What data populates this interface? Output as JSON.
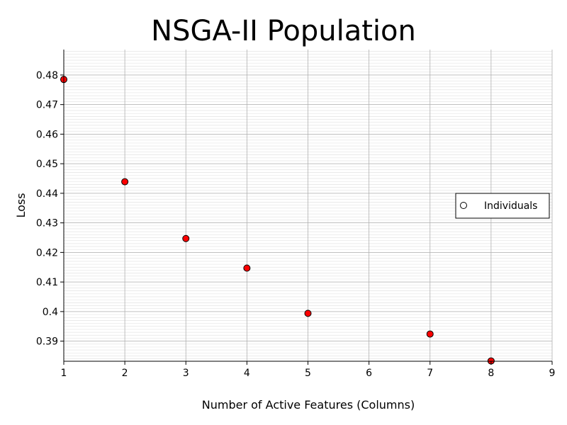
{
  "chart_data": {
    "type": "scatter",
    "title": "NSGA-II Population",
    "xlabel": "Number of Active Features (Columns)",
    "ylabel": "Loss",
    "xlim": [
      1,
      9
    ],
    "ylim": [
      0.3832,
      0.4886
    ],
    "xticks": [
      "1",
      "2",
      "3",
      "4",
      "5",
      "6",
      "7",
      "8",
      "9"
    ],
    "yticks": [
      "0.39",
      "0.4",
      "0.41",
      "0.42",
      "0.43",
      "0.44",
      "0.45",
      "0.46",
      "0.47",
      "0.48"
    ],
    "grid": true,
    "legend_position": "right",
    "series": [
      {
        "name": "Individuals",
        "color": "#ff0000",
        "x": [
          1,
          2,
          3,
          4,
          5,
          7,
          8
        ],
        "y": [
          0.4785,
          0.4439,
          0.4247,
          0.4147,
          0.3994,
          0.3924,
          0.3833
        ]
      }
    ]
  }
}
